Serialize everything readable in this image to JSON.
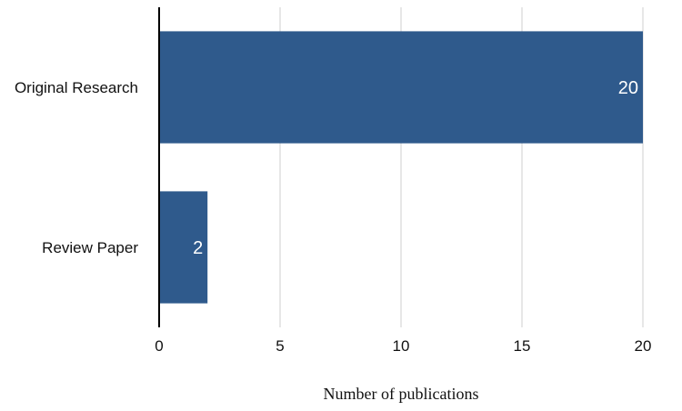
{
  "chart_data": {
    "type": "bar",
    "orientation": "horizontal",
    "categories": [
      "Original Research",
      "Review Paper"
    ],
    "values": [
      20,
      2
    ],
    "data_labels": [
      "20",
      "2"
    ],
    "xlabel": "Number of publications",
    "ylabel": "",
    "xlim": [
      0,
      20
    ],
    "x_ticks": [
      "0",
      "5",
      "10",
      "15",
      "20"
    ],
    "grid": "vertical",
    "legend": "none",
    "bar_color": "#2f5a8c"
  }
}
